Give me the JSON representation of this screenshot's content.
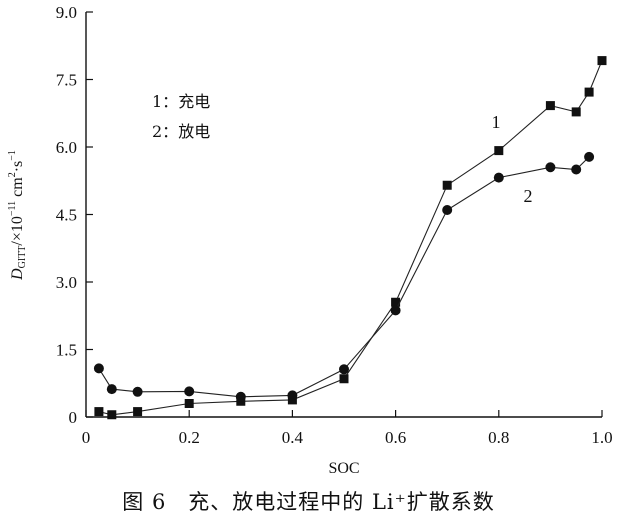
{
  "caption": "图 6　充、放电过程中的 Li⁺扩散系数",
  "chart_data": {
    "type": "line",
    "xlabel": "SOC",
    "ylabel_main": "D",
    "ylabel_sub": "GITT",
    "ylabel_rest": "/×10",
    "ylabel_exp": "−11",
    "ylabel_unit1": " cm",
    "ylabel_unit_sq": "2",
    "ylabel_unit2": "·s",
    "ylabel_unit_exp": "−1",
    "xlim": [
      0,
      1.0
    ],
    "ylim": [
      0,
      9.0
    ],
    "xticks": [
      0,
      0.2,
      0.4,
      0.6,
      0.8,
      1.0
    ],
    "xtick_labels": [
      "0",
      "0.2",
      "0.4",
      "0.6",
      "0.8",
      "1.0"
    ],
    "yticks": [
      0,
      1.5,
      3.0,
      4.5,
      6.0,
      7.5,
      9.0
    ],
    "ytick_labels": [
      "0",
      "1.5",
      "3.0",
      "4.5",
      "6.0",
      "7.5",
      "9.0"
    ],
    "legend": [
      {
        "number": "1：",
        "label": "充电"
      },
      {
        "number": "2：",
        "label": "放电"
      }
    ],
    "series": [
      {
        "tag": "1",
        "marker": "square",
        "x": [
          0.025,
          0.05,
          0.1,
          0.2,
          0.3,
          0.4,
          0.5,
          0.6,
          0.7,
          0.8,
          0.9,
          0.95,
          0.975,
          1.0
        ],
        "y": [
          0.12,
          0.05,
          0.12,
          0.3,
          0.35,
          0.38,
          0.85,
          2.55,
          5.15,
          5.92,
          6.92,
          6.78,
          7.22,
          7.92
        ]
      },
      {
        "tag": "2",
        "marker": "circle",
        "x": [
          0.025,
          0.05,
          0.1,
          0.2,
          0.3,
          0.4,
          0.5,
          0.6,
          0.7,
          0.8,
          0.9,
          0.95,
          0.975
        ],
        "y": [
          1.08,
          0.62,
          0.56,
          0.57,
          0.45,
          0.48,
          1.06,
          2.37,
          4.6,
          5.32,
          5.55,
          5.5,
          5.78
        ]
      }
    ]
  }
}
